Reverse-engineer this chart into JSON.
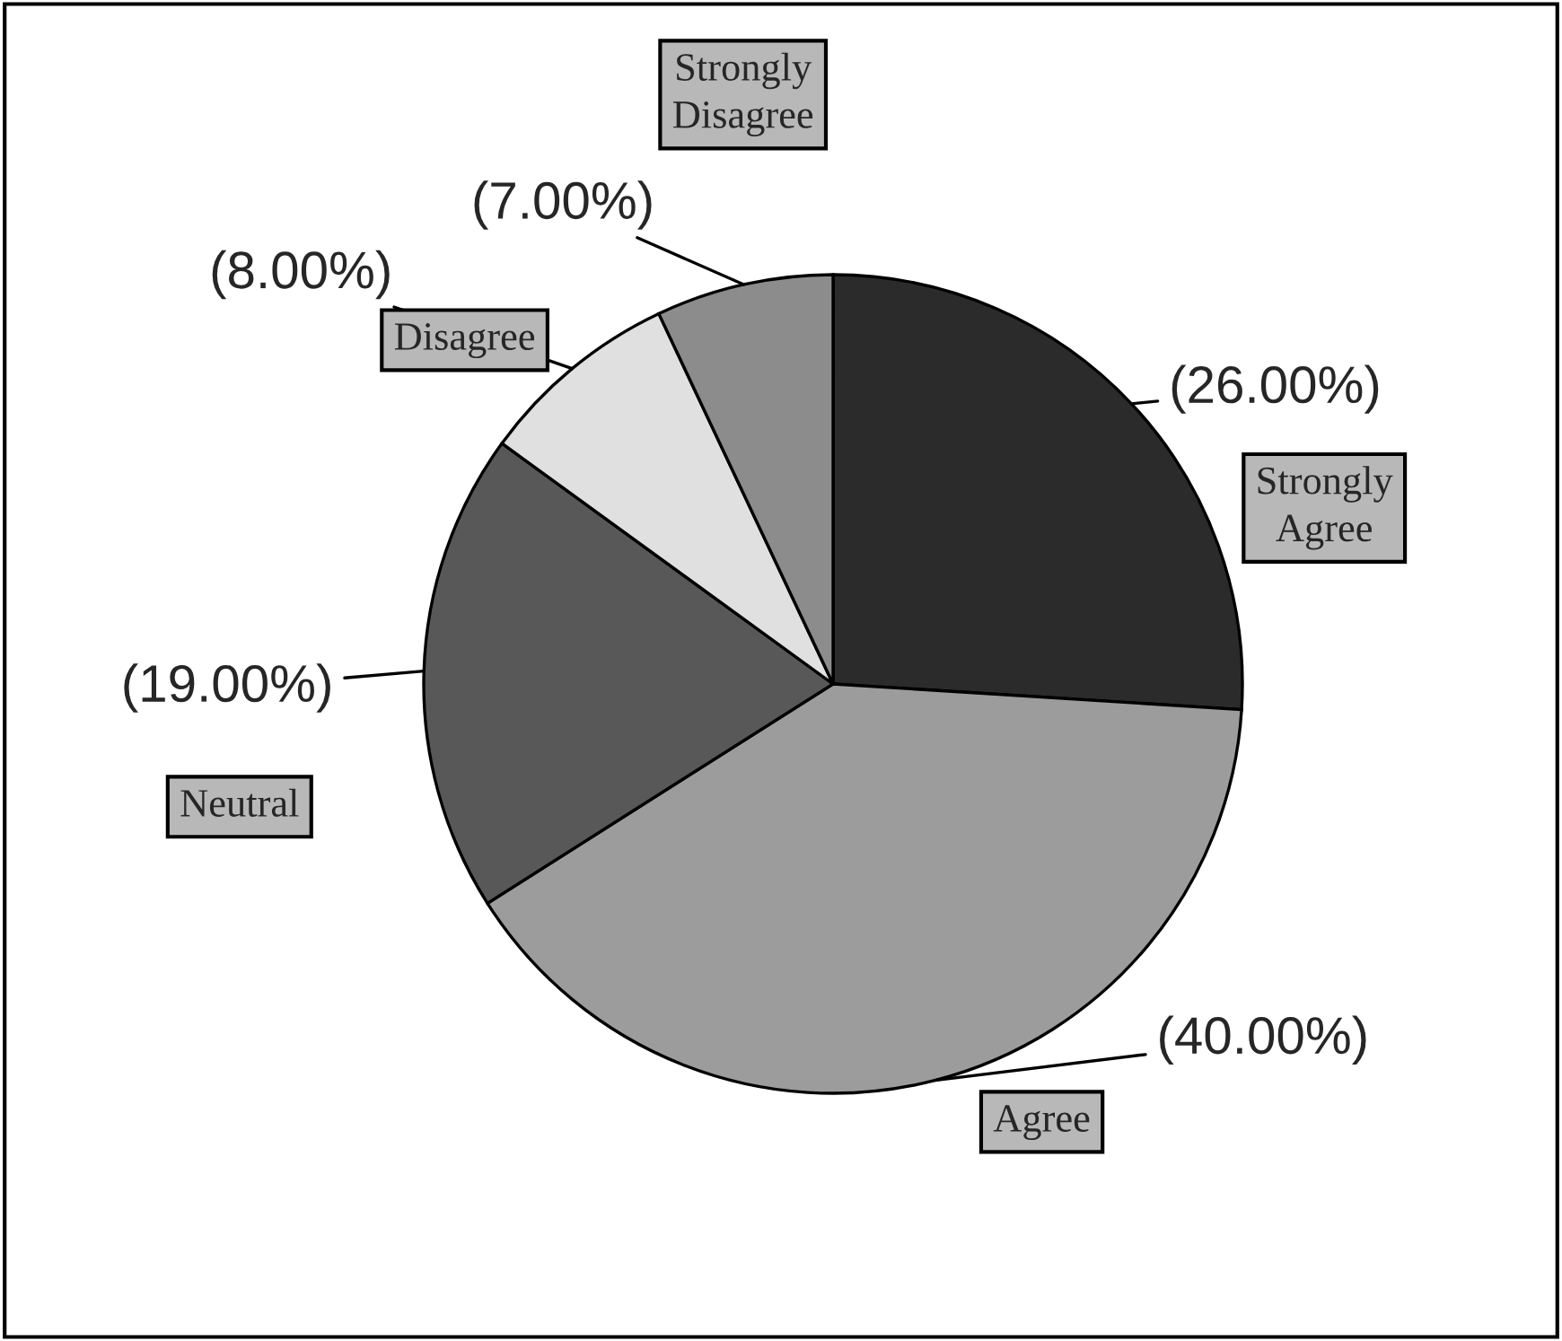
{
  "chart_data": {
    "type": "pie",
    "categories": [
      "Strongly Agree",
      "Agree",
      "Neutral",
      "Disagree",
      "Strongly Disagree"
    ],
    "values": [
      26,
      40,
      19,
      8,
      7
    ],
    "colors": [
      "#2b2b2b",
      "#9c9c9c",
      "#585858",
      "#e0e0e0",
      "#8c8c8c"
    ],
    "value_labels": [
      "(26.00%)",
      "(40.00%)",
      "(19.00%)",
      "(8.00%)",
      "(7.00%)"
    ]
  }
}
